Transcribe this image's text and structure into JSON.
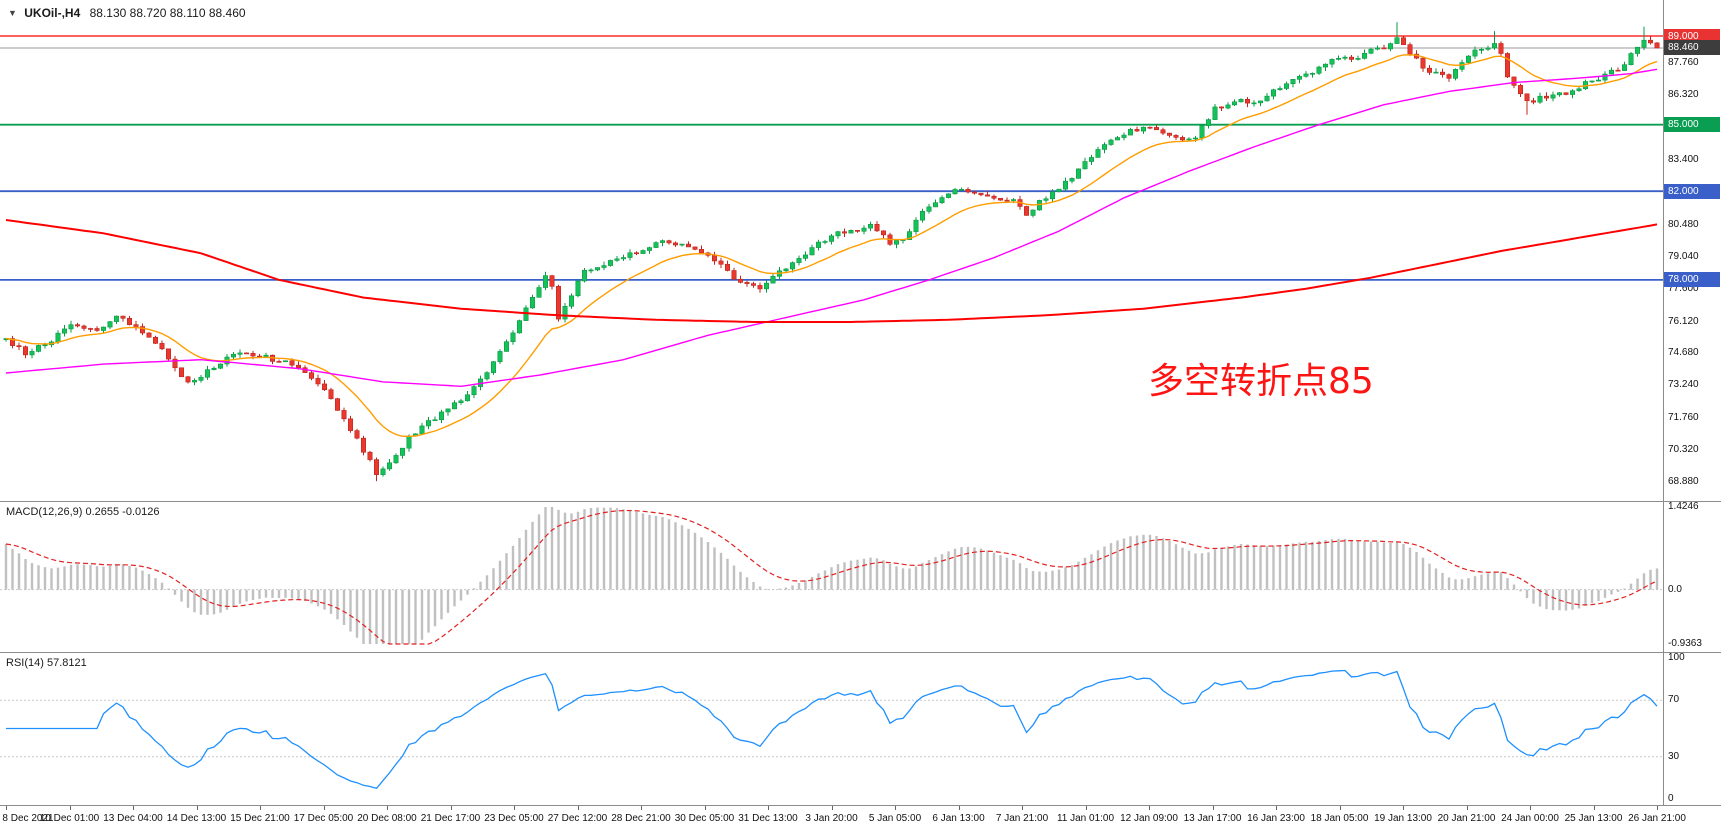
{
  "header": {
    "marker_icon": "▼"
  },
  "chart_data": [
    {
      "type": "candlestick",
      "name": "main-price-chart",
      "symbol": "UKOil-",
      "timeframe": "H4",
      "header": {
        "title": "UKOil-,H4",
        "ohlc": "88.130 88.720 88.110 88.460",
        "open": "88.130",
        "high": "88.720",
        "low": "88.110",
        "close": "88.460"
      },
      "n_candles": 255,
      "noise_seed": 20220126,
      "noise_amp": 0.22,
      "y_range": [
        68.2,
        90.6
      ],
      "price_path_keyframes": [
        [
          0,
          75.3
        ],
        [
          3,
          74.7
        ],
        [
          6,
          75.1
        ],
        [
          10,
          75.9
        ],
        [
          14,
          75.7
        ],
        [
          17,
          76.3
        ],
        [
          20,
          75.9
        ],
        [
          24,
          74.8
        ],
        [
          28,
          73.3
        ],
        [
          33,
          74.3
        ],
        [
          36,
          74.7
        ],
        [
          40,
          74.5
        ],
        [
          44,
          74.2
        ],
        [
          48,
          73.4
        ],
        [
          52,
          71.8
        ],
        [
          55,
          70.3
        ],
        [
          57,
          69.3
        ],
        [
          58,
          69.4
        ],
        [
          60,
          70.0
        ],
        [
          62,
          70.9
        ],
        [
          66,
          71.8
        ],
        [
          70,
          72.6
        ],
        [
          74,
          73.8
        ],
        [
          78,
          75.6
        ],
        [
          81,
          77.2
        ],
        [
          83,
          78.1
        ],
        [
          84,
          77.8
        ],
        [
          85,
          76.2
        ],
        [
          87,
          77.3
        ],
        [
          89,
          78.4
        ],
        [
          92,
          78.7
        ],
        [
          95,
          79.0
        ],
        [
          98,
          79.4
        ],
        [
          101,
          79.7
        ],
        [
          104,
          79.6
        ],
        [
          107,
          79.2
        ],
        [
          110,
          78.6
        ],
        [
          113,
          77.9
        ],
        [
          116,
          77.7
        ],
        [
          119,
          78.3
        ],
        [
          122,
          78.9
        ],
        [
          125,
          79.6
        ],
        [
          128,
          80.1
        ],
        [
          131,
          80.3
        ],
        [
          133,
          80.4
        ],
        [
          136,
          79.7
        ],
        [
          138,
          79.8
        ],
        [
          141,
          81.0
        ],
        [
          144,
          81.8
        ],
        [
          146,
          82.1
        ],
        [
          149,
          81.9
        ],
        [
          152,
          81.7
        ],
        [
          155,
          81.6
        ],
        [
          157,
          81.0
        ],
        [
          159,
          81.5
        ],
        [
          161,
          82.0
        ],
        [
          164,
          82.6
        ],
        [
          166,
          83.3
        ],
        [
          168,
          83.9
        ],
        [
          170,
          84.3
        ],
        [
          173,
          84.7
        ],
        [
          176,
          84.9
        ],
        [
          178,
          84.7
        ],
        [
          181,
          84.3
        ],
        [
          183,
          84.5
        ],
        [
          186,
          85.7
        ],
        [
          189,
          86.1
        ],
        [
          192,
          86.0
        ],
        [
          195,
          86.5
        ],
        [
          198,
          87.0
        ],
        [
          200,
          87.2
        ],
        [
          203,
          87.8
        ],
        [
          205,
          88.0
        ],
        [
          207,
          87.9
        ],
        [
          209,
          88.2
        ],
        [
          211,
          88.4
        ],
        [
          213,
          88.6
        ],
        [
          214,
          88.9
        ],
        [
          216,
          88.2
        ],
        [
          218,
          87.6
        ],
        [
          220,
          87.3
        ],
        [
          222,
          87.2
        ],
        [
          224,
          87.7
        ],
        [
          226,
          88.3
        ],
        [
          228,
          88.5
        ],
        [
          229,
          88.6
        ],
        [
          230,
          88.3
        ],
        [
          231,
          87.1
        ],
        [
          233,
          86.3
        ],
        [
          234,
          86.0
        ],
        [
          236,
          86.2
        ],
        [
          238,
          86.4
        ],
        [
          240,
          86.3
        ],
        [
          242,
          86.7
        ],
        [
          244,
          87.0
        ],
        [
          246,
          87.2
        ],
        [
          248,
          87.5
        ],
        [
          250,
          88.1
        ],
        [
          252,
          88.9
        ],
        [
          253,
          88.7
        ],
        [
          254,
          88.46
        ]
      ],
      "wick_overrides": [
        {
          "i": 57,
          "low": 68.92
        },
        {
          "i": 214,
          "high": 89.62
        },
        {
          "i": 229,
          "high": 89.22
        },
        {
          "i": 234,
          "low": 85.45
        },
        {
          "i": 252,
          "high": 89.42
        },
        {
          "i": 254,
          "close": 88.46
        }
      ],
      "candle_up": {
        "fill": "#15c159",
        "stroke": "#0a9a43"
      },
      "candle_down": {
        "fill": "#e8382f",
        "stroke": "#bf251c"
      },
      "overlays": [
        {
          "name": "ma-fast",
          "type": "ema",
          "period": 14,
          "color": "#ff9d00",
          "width": 1.4
        },
        {
          "name": "ma-medium",
          "type": "keyframes",
          "color": "#ff00ff",
          "width": 1.4,
          "points": [
            [
              0,
              73.8
            ],
            [
              15,
              74.2
            ],
            [
              30,
              74.4
            ],
            [
              45,
              74.0
            ],
            [
              58,
              73.4
            ],
            [
              70,
              73.2
            ],
            [
              82,
              73.7
            ],
            [
              95,
              74.4
            ],
            [
              108,
              75.5
            ],
            [
              120,
              76.3
            ],
            [
              132,
              77.1
            ],
            [
              142,
              78.0
            ],
            [
              152,
              79.0
            ],
            [
              162,
              80.2
            ],
            [
              172,
              81.7
            ],
            [
              182,
              82.9
            ],
            [
              192,
              84.0
            ],
            [
              202,
              85.0
            ],
            [
              212,
              85.9
            ],
            [
              222,
              86.5
            ],
            [
              232,
              86.9
            ],
            [
              242,
              87.1
            ],
            [
              250,
              87.3
            ],
            [
              254,
              87.5
            ]
          ]
        },
        {
          "name": "ma-slow",
          "type": "keyframes",
          "color": "#ff0000",
          "width": 2,
          "points": [
            [
              0,
              80.7
            ],
            [
              15,
              80.1
            ],
            [
              30,
              79.2
            ],
            [
              42,
              78.0
            ],
            [
              55,
              77.2
            ],
            [
              70,
              76.7
            ],
            [
              85,
              76.4
            ],
            [
              100,
              76.2
            ],
            [
              115,
              76.1
            ],
            [
              130,
              76.1
            ],
            [
              145,
              76.2
            ],
            [
              160,
              76.4
            ],
            [
              175,
              76.7
            ],
            [
              190,
              77.2
            ],
            [
              200,
              77.6
            ],
            [
              210,
              78.1
            ],
            [
              220,
              78.7
            ],
            [
              230,
              79.3
            ],
            [
              240,
              79.8
            ],
            [
              248,
              80.2
            ],
            [
              254,
              80.5
            ]
          ]
        }
      ],
      "horizontal_lines": [
        {
          "price": 89.0,
          "label": "89.000",
          "line_color": "#ff0000",
          "tag_color": "#e93333",
          "width": 1.2
        },
        {
          "price": 88.46,
          "label": "88.460",
          "line_color": "#9a9a9a",
          "tag_color": "#3d3d3d",
          "width": 1
        },
        {
          "price": 85.0,
          "label": "85.000",
          "line_color": "#0a9e52",
          "tag_color": "#0a9e52",
          "width": 1.8
        },
        {
          "price": 82.0,
          "label": "82.000",
          "line_color": "#3a5fc8",
          "tag_color": "#3a5fc8",
          "width": 1.8
        },
        {
          "price": 78.0,
          "label": "78.000",
          "line_color": "#3a5fc8",
          "tag_color": "#3a5fc8",
          "width": 1.8
        }
      ],
      "y_axis_labels": [
        "87.760",
        "86.320",
        "83.400",
        "80.480",
        "79.040",
        "77.600",
        "76.120",
        "74.680",
        "73.240",
        "71.760",
        "70.320",
        "68.880"
      ],
      "x_labels": [
        "8 Dec 2021",
        "10 Dec 01:00",
        "13 Dec 04:00",
        "14 Dec 13:00",
        "15 Dec 21:00",
        "17 Dec 05:00",
        "20 Dec 08:00",
        "21 Dec 17:00",
        "23 Dec 05:00",
        "27 Dec 12:00",
        "28 Dec 21:00",
        "30 Dec 05:00",
        "31 Dec 13:00",
        "3 Jan 20:00",
        "5 Jan 05:00",
        "6 Jan 13:00",
        "7 Jan 21:00",
        "11 Jan 01:00",
        "12 Jan 09:00",
        "13 Jan 17:00",
        "16 Jan 23:00",
        "18 Jan 05:00",
        "19 Jan 13:00",
        "20 Jan 21:00",
        "24 Jan 00:00",
        "25 Jan 13:00",
        "26 Jan 21:00"
      ],
      "annotation": {
        "text": "多空转折点85",
        "color": "#ff1414",
        "x": 1148,
        "y": 352,
        "font_size": 36
      }
    },
    {
      "type": "bar",
      "name": "macd",
      "header": "MACD(12,26,9) 0.2655 -0.0126",
      "params": {
        "fast": 12,
        "slow": 26,
        "signal": 9
      },
      "current_macd": "0.2655",
      "current_signal": "-0.0126",
      "left_bias": 0.85,
      "y_range": [
        -0.9363,
        1.4246
      ],
      "y_labels": [
        {
          "text": "1.4246",
          "v": 1.4246
        },
        {
          "text": "0.0",
          "v": 0
        },
        {
          "text": "-0.9363",
          "v": -0.9363
        }
      ],
      "histogram_color": "#c0c0c0",
      "signal_color": "#e22222",
      "derived_from": "main chart closes"
    },
    {
      "type": "line",
      "name": "rsi",
      "header": "RSI(14) 57.8121",
      "period": 14,
      "current": "57.8121",
      "y_range": [
        0,
        100
      ],
      "levels": [
        70,
        30
      ],
      "y_labels": [
        {
          "text": "100",
          "v": 100
        },
        {
          "text": "70",
          "v": 70
        },
        {
          "text": "30",
          "v": 30
        },
        {
          "text": "0",
          "v": 0
        }
      ],
      "line_color": "#1e90ff",
      "level_color": "#c8c8c8"
    }
  ]
}
